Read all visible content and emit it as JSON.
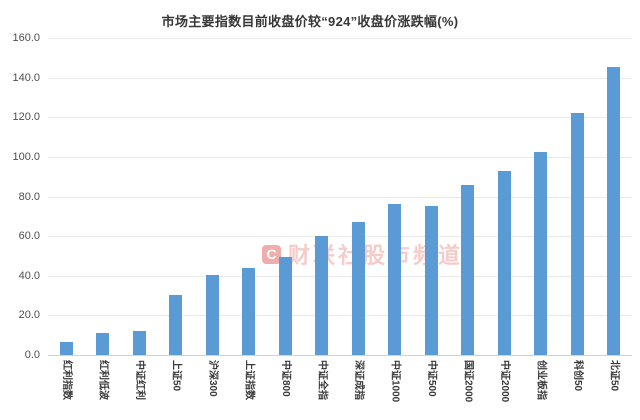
{
  "colors": {
    "bar": "#5B9BD5",
    "grid": "#EAEAEA",
    "baseline": "#D2D2D2",
    "watermark_red": "#DD564F",
    "title_text": "#373737",
    "axis_text": "#4F4F4F"
  },
  "watermark": {
    "logo_letter": "C",
    "text": "财联社股市频道"
  },
  "chart_data": {
    "type": "bar",
    "title": "市场主要指数目前收盘价较“924”收盘价涨跌幅(%)",
    "xlabel": "",
    "ylabel": "",
    "ylim": [
      0,
      160
    ],
    "ytick_step": 20,
    "ytick_labels_top_to_bottom": [
      "160.0",
      "140.0",
      "120.0",
      "100.0",
      "80.0",
      "60.0",
      "40.0",
      "20.0",
      "0.0"
    ],
    "grid": true,
    "legend": "none",
    "bar_color": "#5B9BD5",
    "categories": [
      "红利指数",
      "红利低波",
      "中证红利",
      "上证50",
      "沪深300",
      "上证指数",
      "中证800",
      "中证全指",
      "深证成指",
      "中证1000",
      "中证500",
      "国证2000",
      "中证2000",
      "创业板指",
      "科创50",
      "北证50"
    ],
    "values": [
      6.4,
      11.0,
      12.3,
      30.4,
      40.5,
      44.0,
      49.6,
      60.2,
      67.4,
      76.0,
      75.3,
      85.6,
      93.0,
      102.6,
      122.0,
      145.5
    ]
  }
}
